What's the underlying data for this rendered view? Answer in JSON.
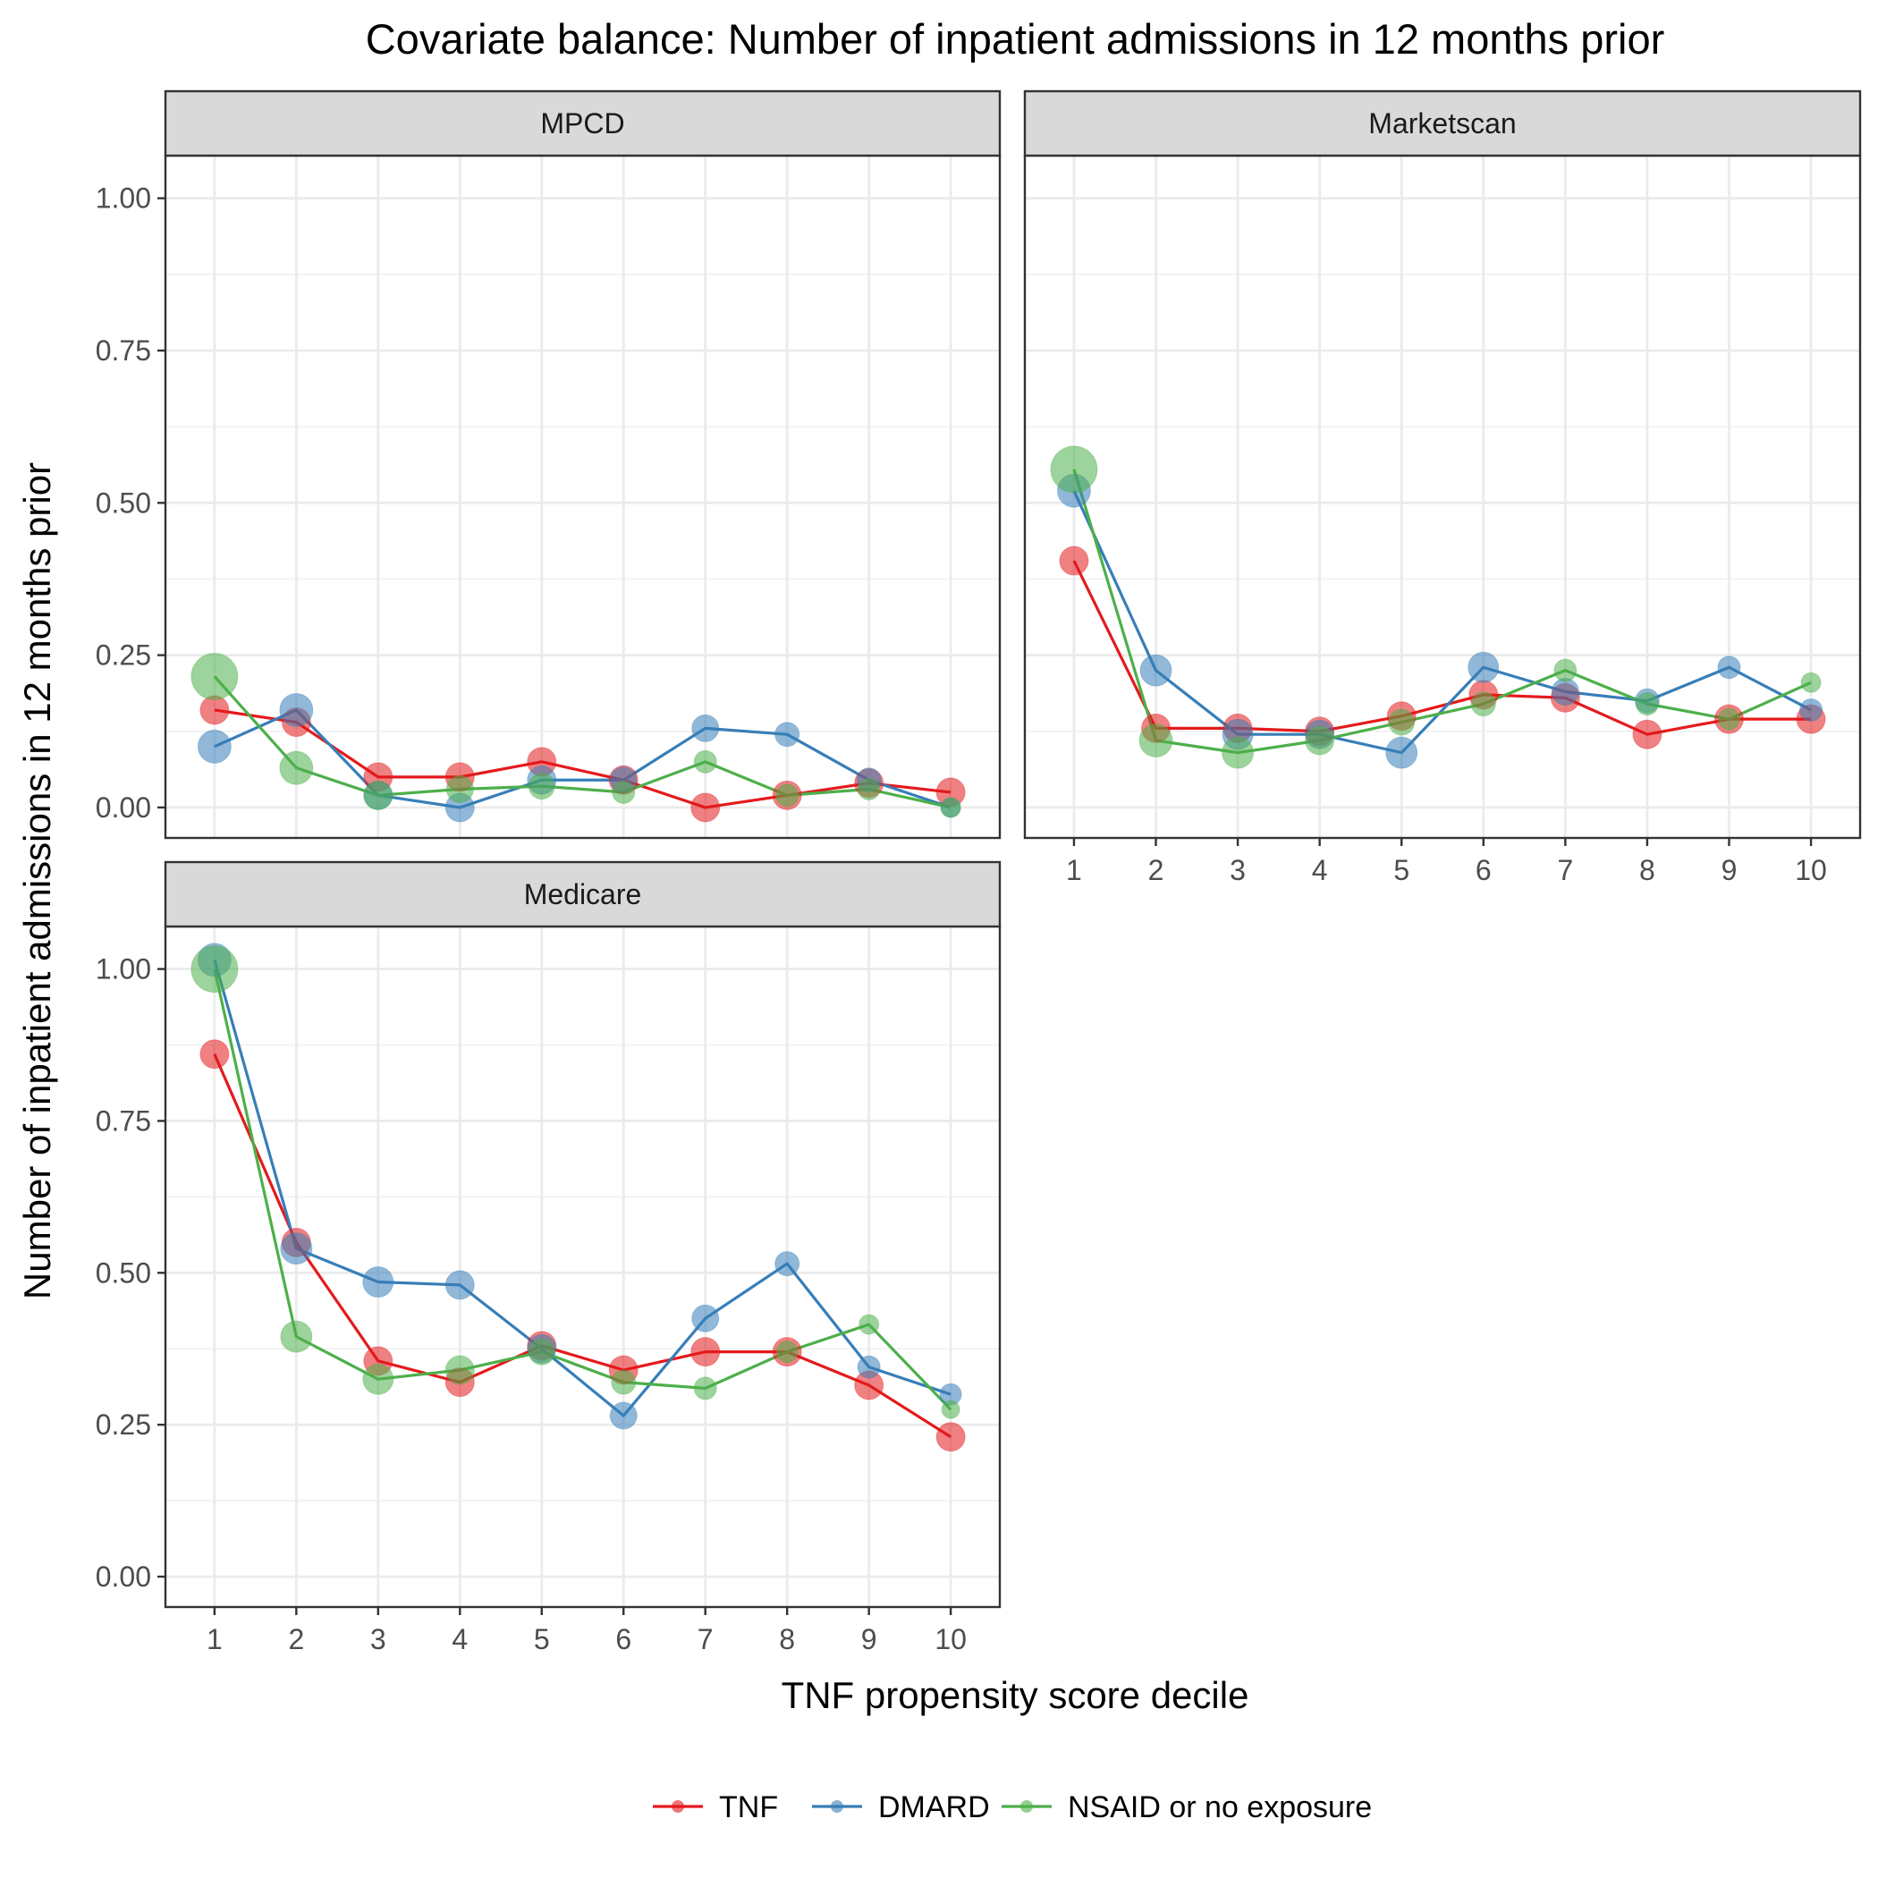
{
  "chart_data": {
    "type": "line",
    "title": "Covariate balance: Number of inpatient admissions in 12 months prior",
    "xlabel": "TNF propensity score decile",
    "ylabel": "Number of inpatient admissions in 12 months prior",
    "x": [
      1,
      2,
      3,
      4,
      5,
      6,
      7,
      8,
      9,
      10
    ],
    "xticks": [
      "1",
      "2",
      "3",
      "4",
      "5",
      "6",
      "7",
      "8",
      "9",
      "10"
    ],
    "ylim": [
      0,
      1.05
    ],
    "yticks": [
      0,
      0.25,
      0.5,
      0.75,
      1.0
    ],
    "ytick_labels": [
      "0.00",
      "0.25",
      "0.50",
      "0.75",
      "1.00"
    ],
    "grid": true,
    "legend_position": "bottom",
    "legend": [
      {
        "name": "TNF",
        "color": "#e41a1c"
      },
      {
        "name": "DMARD",
        "color": "#377eb8"
      },
      {
        "name": "NSAID or no exposure",
        "color": "#4daf4a"
      }
    ],
    "panels": [
      {
        "name": "MPCD",
        "series": [
          {
            "name": "TNF",
            "values": [
              0.16,
              0.14,
              0.05,
              0.05,
              0.075,
              0.045,
              0.0,
              0.02,
              0.04,
              0.025
            ],
            "sizes": [
              2,
              2,
              2,
              2,
              2,
              2,
              2,
              2,
              2,
              2
            ]
          },
          {
            "name": "DMARD",
            "values": [
              0.1,
              0.16,
              0.02,
              0.0,
              0.045,
              0.045,
              0.13,
              0.12,
              0.045,
              0.0
            ],
            "sizes": [
              2.5,
              2.5,
              2,
              2,
              2,
              1.7,
              1.8,
              1.5,
              1.5,
              1
            ]
          },
          {
            "name": "NSAID or no exposure",
            "values": [
              0.215,
              0.065,
              0.02,
              0.03,
              0.035,
              0.025,
              0.075,
              0.02,
              0.03,
              0.0
            ],
            "sizes": [
              4,
              2.5,
              2,
              1.8,
              1.7,
              1.3,
              1.3,
              1.3,
              1.2,
              1.0
            ]
          }
        ]
      },
      {
        "name": "Marketscan",
        "series": [
          {
            "name": "TNF",
            "values": [
              0.405,
              0.13,
              0.13,
              0.125,
              0.15,
              0.185,
              0.18,
              0.12,
              0.145,
              0.145
            ],
            "sizes": [
              2,
              2,
              2,
              2,
              2,
              2,
              2,
              2,
              2,
              2
            ]
          },
          {
            "name": "DMARD",
            "values": [
              0.52,
              0.225,
              0.12,
              0.12,
              0.09,
              0.23,
              0.19,
              0.175,
              0.23,
              0.16
            ],
            "sizes": [
              2.5,
              2.3,
              2.2,
              2,
              2.3,
              2.2,
              1.8,
              1.5,
              1.3,
              1.3
            ]
          },
          {
            "name": "NSAID or no exposure",
            "values": [
              0.555,
              0.11,
              0.09,
              0.11,
              0.14,
              0.17,
              0.225,
              0.17,
              0.145,
              0.205
            ],
            "sizes": [
              4,
              2.5,
              2.3,
              2,
              1.7,
              1.5,
              1.3,
              1.3,
              1.2,
              1.0
            ]
          }
        ]
      },
      {
        "name": "Medicare",
        "series": [
          {
            "name": "TNF",
            "values": [
              0.86,
              0.55,
              0.355,
              0.32,
              0.38,
              0.34,
              0.37,
              0.37,
              0.315,
              0.23
            ],
            "sizes": [
              2,
              2,
              2,
              2,
              2,
              2,
              2,
              2,
              2,
              2
            ]
          },
          {
            "name": "DMARD",
            "values": [
              1.015,
              0.54,
              0.485,
              0.48,
              0.375,
              0.265,
              0.425,
              0.515,
              0.345,
              0.3
            ],
            "sizes": [
              2.5,
              2.3,
              2.2,
              2,
              2,
              1.8,
              1.8,
              1.5,
              1.3,
              1.2
            ]
          },
          {
            "name": "NSAID or no exposure",
            "values": [
              1.0,
              0.395,
              0.325,
              0.34,
              0.37,
              0.32,
              0.31,
              0.37,
              0.415,
              0.275
            ],
            "sizes": [
              4,
              2.3,
              2.2,
              2,
              1.7,
              1.5,
              1.3,
              1.2,
              1.0,
              0.8
            ]
          }
        ]
      }
    ]
  }
}
